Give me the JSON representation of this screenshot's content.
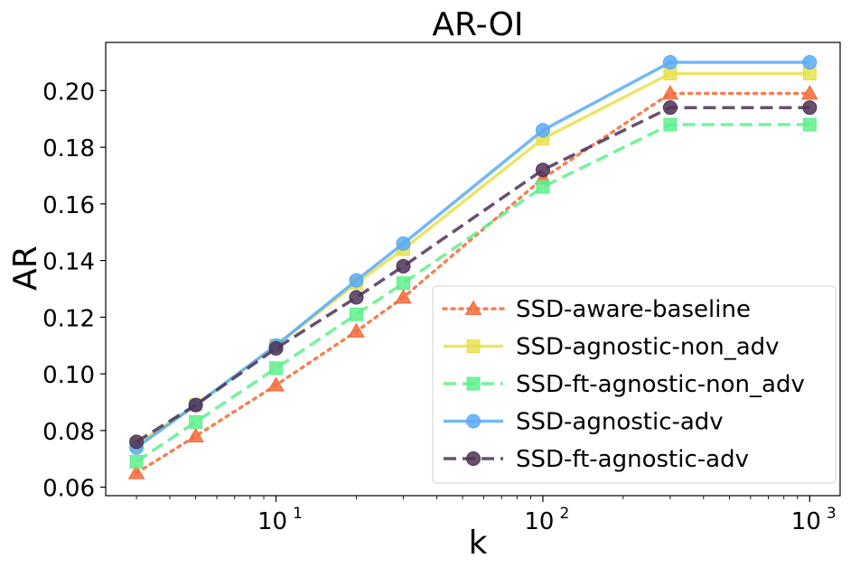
{
  "chart_data": {
    "type": "line",
    "title": "AR-OI",
    "xlabel": "k",
    "ylabel": "AR",
    "x_scale": "log",
    "xlim": [
      2.3,
      1300
    ],
    "ylim": [
      0.057,
      0.217
    ],
    "x_ticks": [
      {
        "value": 10,
        "base": "10",
        "exp": "1"
      },
      {
        "value": 100,
        "base": "10",
        "exp": "2"
      },
      {
        "value": 1000,
        "base": "10",
        "exp": "3"
      }
    ],
    "y_ticks": [
      0.06,
      0.08,
      0.1,
      0.12,
      0.14,
      0.16,
      0.18,
      0.2
    ],
    "y_tick_labels": [
      "0.06",
      "0.08",
      "0.10",
      "0.12",
      "0.14",
      "0.16",
      "0.18",
      "0.20"
    ],
    "grid": false,
    "legend_position": "lower-right",
    "x": [
      3,
      5,
      10,
      20,
      30,
      100,
      300,
      1000
    ],
    "series": [
      {
        "name": "SSD-aware-baseline",
        "color": "#f26b38",
        "dash": "dotted",
        "marker": "triangle",
        "values": [
          0.065,
          0.078,
          0.096,
          0.115,
          0.127,
          0.169,
          0.199,
          0.199
        ]
      },
      {
        "name": "SSD-agnostic-non_adv",
        "color": "#e8e04f",
        "dash": "solid",
        "marker": "square",
        "values": [
          0.075,
          0.089,
          0.11,
          0.132,
          0.144,
          0.183,
          0.206,
          0.206
        ]
      },
      {
        "name": "SSD-ft-agnostic-non_adv",
        "color": "#5ef08c",
        "dash": "dashed",
        "marker": "square",
        "values": [
          0.069,
          0.083,
          0.102,
          0.121,
          0.132,
          0.166,
          0.188,
          0.188
        ]
      },
      {
        "name": "SSD-agnostic-adv",
        "color": "#5aabf5",
        "dash": "solid",
        "marker": "circle",
        "values": [
          0.074,
          0.089,
          0.11,
          0.133,
          0.146,
          0.186,
          0.21,
          0.21
        ]
      },
      {
        "name": "SSD-ft-agnostic-adv",
        "color": "#4d3356",
        "dash": "dashed",
        "marker": "circle",
        "values": [
          0.076,
          0.089,
          0.109,
          0.127,
          0.138,
          0.172,
          0.194,
          0.194
        ]
      }
    ]
  }
}
